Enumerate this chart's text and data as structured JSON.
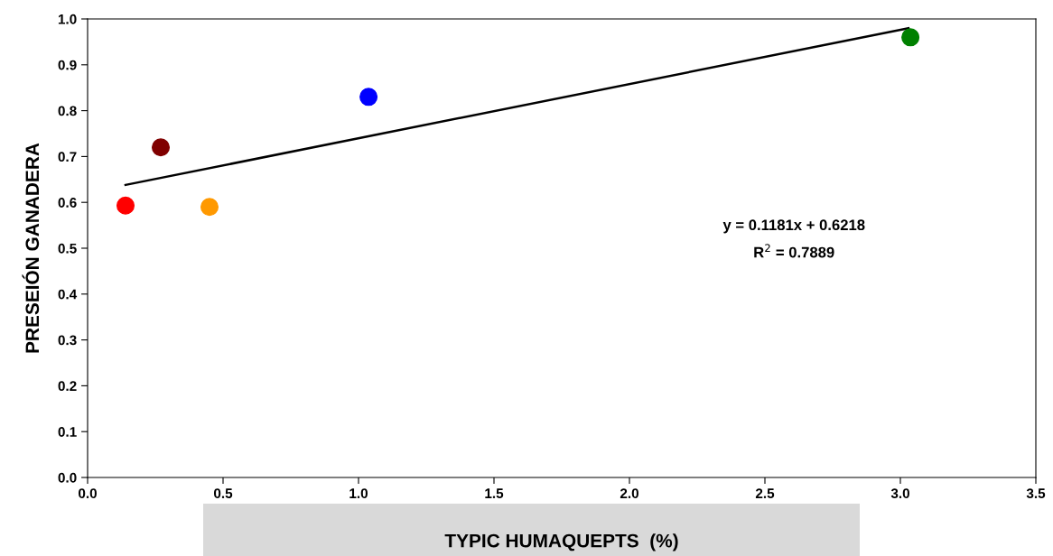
{
  "chart_data": {
    "type": "scatter",
    "xlabel": "TYPIC HUMAQUEPTS  (%)",
    "ylabel": "PRESEIÓN GANADERA",
    "series": [
      {
        "x": [
          0.14,
          0.27,
          0.45,
          1.037,
          3.037
        ],
        "values": [
          0.593,
          0.72,
          0.59,
          0.83,
          0.96
        ],
        "colors": [
          "#ff0000",
          "#800000",
          "#ff9900",
          "#0000ff",
          "#008000"
        ],
        "marker": "circle"
      },
      {
        "type": "line",
        "x": [
          0.14,
          3.03
        ],
        "values": [
          0.638,
          0.98
        ],
        "color": "#000000",
        "line_style": "solid"
      }
    ],
    "annotations": [
      "y = 0.1181x + 0.6218",
      "R$^{2}$ = 0.7889"
    ],
    "xlim": [
      0,
      3.5
    ],
    "xticks": [
      {
        "value": 0,
        "label": "0.0"
      },
      0.5,
      {
        "value": 1,
        "label": "1.0"
      },
      1.5,
      {
        "value": 2,
        "label": "2.0"
      },
      2.5,
      {
        "value": 3,
        "label": "3.0"
      },
      3.5
    ],
    "ylim": [
      0,
      1
    ],
    "yticks": [
      {
        "value": 0,
        "label": "0.0"
      },
      0.1,
      0.2,
      0.3,
      0.4,
      0.5,
      0.6,
      0.7,
      0.8,
      0.9,
      {
        "value": 1,
        "label": "1.0"
      }
    ],
    "grid": false,
    "legend": false
  }
}
